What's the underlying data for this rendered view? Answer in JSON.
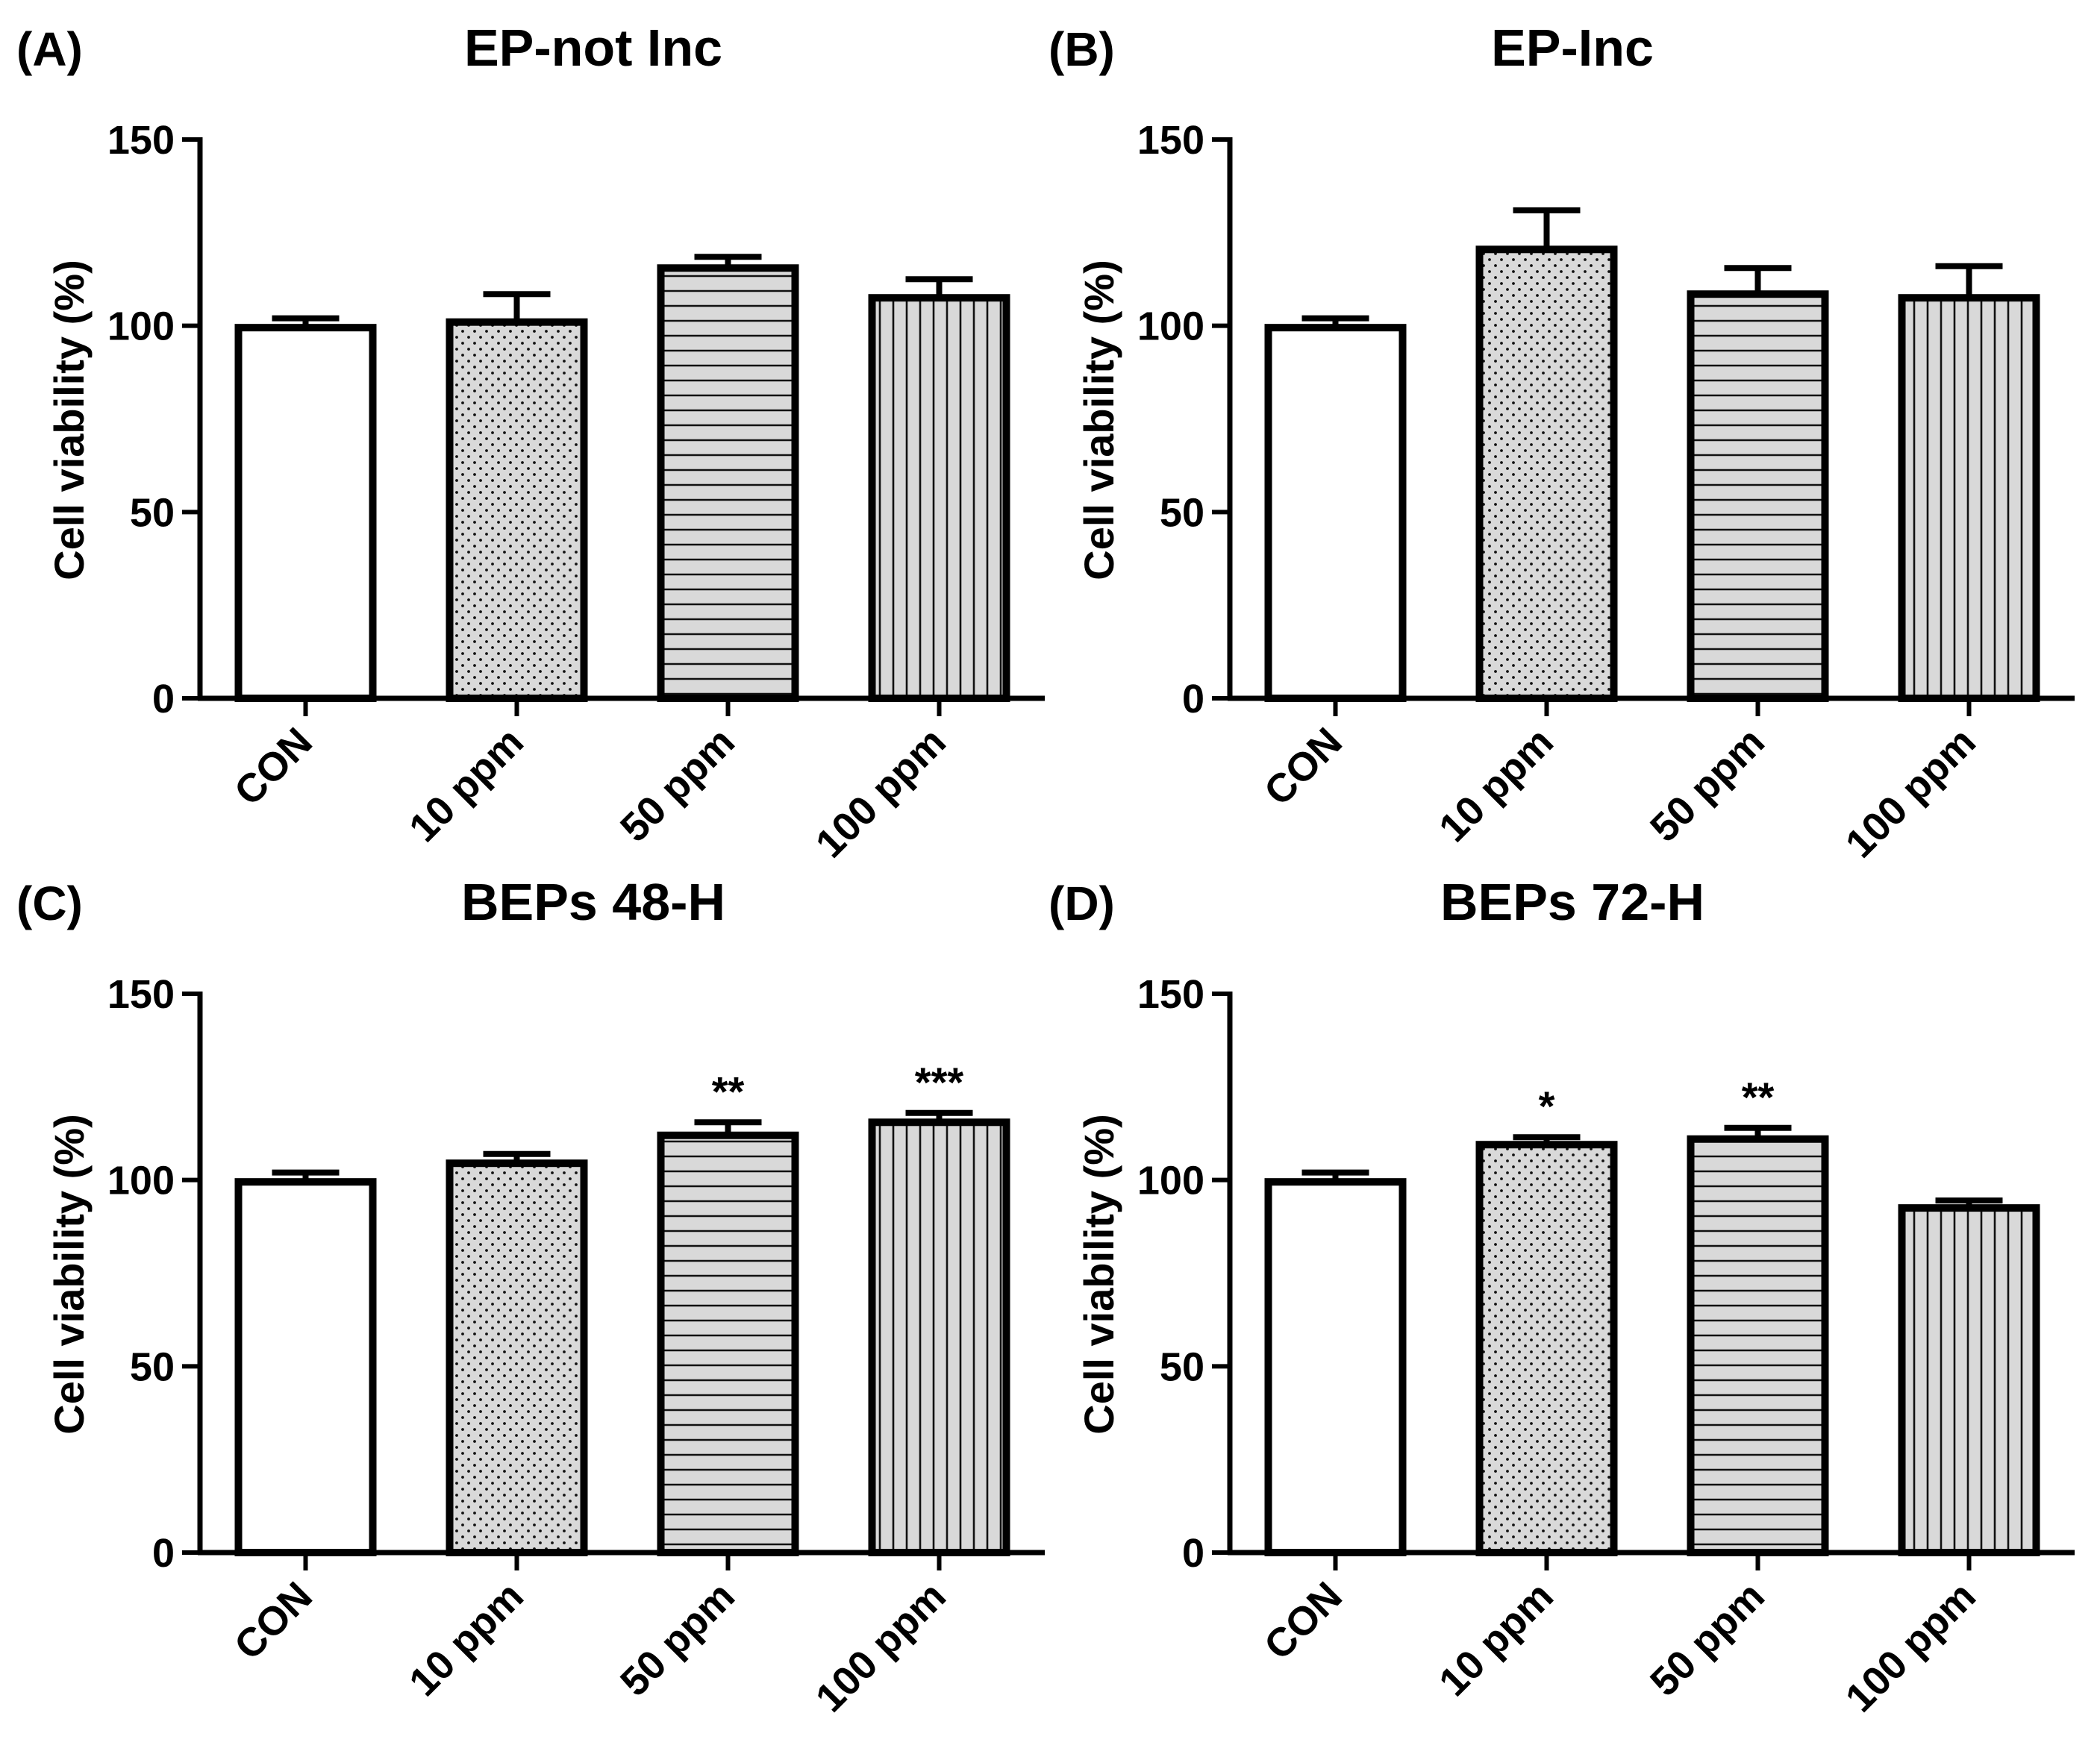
{
  "figure": {
    "ylabel": "Cell viability (%)",
    "yticks": [
      0,
      50,
      100,
      150
    ]
  },
  "chart_data": [
    {
      "type": "bar",
      "panel": "(A)",
      "title": "EP-not Inc",
      "xlabel": "",
      "ylabel": "Cell viability (%)",
      "ylim": [
        0,
        150
      ],
      "categories": [
        "CON",
        "10 ppm",
        "50 ppm",
        "100 ppm"
      ],
      "values": [
        99.5,
        101,
        115.5,
        107.5
      ],
      "errors": [
        2.5,
        7.5,
        3,
        5
      ],
      "significance": [
        "",
        "",
        "",
        ""
      ],
      "patterns": [
        "none",
        "dots",
        "hlines",
        "vlines"
      ]
    },
    {
      "type": "bar",
      "panel": "(B)",
      "title": "EP-Inc",
      "xlabel": "",
      "ylabel": "Cell viability (%)",
      "ylim": [
        0,
        150
      ],
      "categories": [
        "CON",
        "10 ppm",
        "50 ppm",
        "100 ppm"
      ],
      "values": [
        99.5,
        120.5,
        108.5,
        107.5
      ],
      "errors": [
        2.5,
        10.5,
        7,
        8.5
      ],
      "significance": [
        "",
        "",
        "",
        ""
      ],
      "patterns": [
        "none",
        "dots",
        "hlines",
        "vlines"
      ]
    },
    {
      "type": "bar",
      "panel": "(C)",
      "title": "BEPs 48-H",
      "xlabel": "",
      "ylabel": "Cell viability (%)",
      "ylim": [
        0,
        150
      ],
      "categories": [
        "CON",
        "10 ppm",
        "50 ppm",
        "100 ppm"
      ],
      "values": [
        99.5,
        104.5,
        112,
        115.5
      ],
      "errors": [
        2.5,
        2.5,
        3.5,
        2.5
      ],
      "significance": [
        "",
        "",
        "**",
        "***"
      ],
      "patterns": [
        "none",
        "dots",
        "hlines",
        "vlines"
      ]
    },
    {
      "type": "bar",
      "panel": "(D)",
      "title": "BEPs 72-H",
      "xlabel": "",
      "ylabel": "Cell viability (%)",
      "ylim": [
        0,
        150
      ],
      "categories": [
        "CON",
        "10 ppm",
        "50 ppm",
        "100 ppm"
      ],
      "values": [
        99.5,
        109.5,
        111,
        92.5
      ],
      "errors": [
        2.5,
        2,
        3,
        2
      ],
      "significance": [
        "",
        "*",
        "**",
        ""
      ],
      "patterns": [
        "none",
        "dots",
        "hlines",
        "vlines"
      ]
    }
  ]
}
